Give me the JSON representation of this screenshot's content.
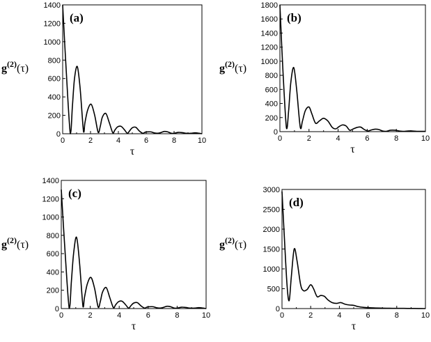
{
  "chart_data": [
    {
      "panel_label": "(a)",
      "type": "line",
      "ylabel": "g(2)(τ)",
      "ylabel_base": "g",
      "ylabel_sup": "(2)",
      "ylabel_arg": "(τ)",
      "xlabel": "τ",
      "xlim": [
        0,
        10
      ],
      "ylim": [
        0,
        1400
      ],
      "xticks": [
        0,
        2,
        4,
        6,
        8,
        10
      ],
      "yticks": [
        0,
        200,
        400,
        600,
        800,
        1000,
        1200,
        1400
      ],
      "grid": false,
      "series": [
        {
          "x": [
            0,
            0.25,
            0.55,
            0.7,
            0.85,
            1.05,
            1.25,
            1.5,
            1.6,
            1.8,
            2.05,
            2.3,
            2.55,
            2.7,
            2.85,
            3.1,
            3.35,
            3.6,
            3.75,
            3.95,
            4.2,
            4.45,
            4.65,
            4.8,
            5.0,
            5.25,
            5.5,
            5.75,
            5.9,
            6.1,
            6.35,
            6.55,
            6.8,
            7.0,
            7.3,
            7.55,
            7.8,
            8.0,
            8.3,
            8.6,
            8.9,
            9.2,
            9.5,
            9.8,
            10
          ],
          "y": [
            1400,
            700,
            0,
            300,
            600,
            730,
            500,
            20,
            120,
            260,
            320,
            200,
            15,
            80,
            180,
            220,
            120,
            10,
            40,
            75,
            80,
            40,
            5,
            30,
            65,
            70,
            30,
            5,
            15,
            20,
            20,
            10,
            5,
            10,
            25,
            20,
            5,
            5,
            15,
            12,
            5,
            5,
            10,
            5,
            0
          ]
        }
      ]
    },
    {
      "panel_label": "(b)",
      "type": "line",
      "ylabel": "g(2)(τ)",
      "ylabel_base": "g",
      "ylabel_sup": "(2)",
      "ylabel_arg": "(τ)",
      "xlabel": "τ",
      "xlim": [
        0,
        10
      ],
      "ylim": [
        0,
        1800
      ],
      "xticks": [
        0,
        2,
        4,
        6,
        8,
        10
      ],
      "yticks": [
        0,
        200,
        400,
        600,
        800,
        1000,
        1200,
        1400,
        1600,
        1800
      ],
      "grid": false,
      "series": [
        {
          "x": [
            0,
            0.2,
            0.45,
            0.6,
            0.75,
            0.95,
            1.15,
            1.4,
            1.55,
            1.75,
            2.0,
            2.2,
            2.45,
            2.7,
            3.0,
            3.3,
            3.6,
            3.85,
            4.05,
            4.3,
            4.55,
            4.8,
            5.05,
            5.3,
            5.55,
            5.8,
            6.05,
            6.3,
            6.55,
            6.8,
            7.05,
            7.3,
            7.6,
            7.9,
            8.2,
            8.5,
            8.8,
            9.1,
            9.4,
            9.7,
            10
          ],
          "y": [
            1800,
            900,
            50,
            300,
            700,
            910,
            600,
            60,
            150,
            300,
            350,
            250,
            120,
            150,
            190,
            150,
            60,
            40,
            70,
            95,
            80,
            20,
            40,
            60,
            65,
            30,
            10,
            25,
            35,
            30,
            10,
            5,
            20,
            20,
            10,
            5,
            10,
            10,
            5,
            5,
            5
          ]
        }
      ]
    },
    {
      "panel_label": "(c)",
      "type": "line",
      "ylabel": "g(2)(τ)",
      "ylabel_base": "g",
      "ylabel_sup": "(2)",
      "ylabel_arg": "(τ)",
      "xlabel": "τ",
      "xlim": [
        0,
        10
      ],
      "ylim": [
        0,
        1400
      ],
      "xticks": [
        0,
        2,
        4,
        6,
        8,
        10
      ],
      "yticks": [
        0,
        200,
        400,
        600,
        800,
        1000,
        1200,
        1400
      ],
      "grid": false,
      "series": [
        {
          "x": [
            0,
            0.25,
            0.55,
            0.7,
            0.85,
            1.05,
            1.25,
            1.5,
            1.6,
            1.8,
            2.05,
            2.3,
            2.55,
            2.7,
            2.85,
            3.1,
            3.35,
            3.6,
            3.75,
            3.95,
            4.2,
            4.45,
            4.65,
            4.8,
            5.0,
            5.25,
            5.5,
            5.75,
            5.9,
            6.1,
            6.35,
            6.55,
            6.8,
            7.0,
            7.3,
            7.55,
            7.8,
            8.0,
            8.3,
            8.6,
            8.9,
            9.2,
            9.5,
            9.8,
            10
          ],
          "y": [
            1300,
            650,
            0,
            300,
            600,
            780,
            520,
            20,
            120,
            270,
            340,
            220,
            15,
            80,
            180,
            230,
            120,
            10,
            40,
            75,
            80,
            40,
            5,
            30,
            60,
            65,
            30,
            5,
            15,
            20,
            20,
            10,
            5,
            10,
            25,
            20,
            5,
            5,
            15,
            12,
            5,
            5,
            10,
            5,
            0
          ]
        }
      ]
    },
    {
      "panel_label": "(d)",
      "type": "line",
      "ylabel": "g(2)(τ)",
      "ylabel_base": "g",
      "ylabel_sup": "(2)",
      "ylabel_arg": "(τ)",
      "xlabel": "τ",
      "xlim": [
        0,
        10
      ],
      "ylim": [
        0,
        3000
      ],
      "xticks": [
        0,
        2,
        4,
        6,
        8,
        10
      ],
      "yticks": [
        0,
        500,
        1000,
        1500,
        2000,
        2500,
        3000
      ],
      "grid": false,
      "series": [
        {
          "x": [
            0,
            0.15,
            0.35,
            0.5,
            0.65,
            0.85,
            1.05,
            1.3,
            1.5,
            1.75,
            2.0,
            2.2,
            2.45,
            2.7,
            2.95,
            3.2,
            3.5,
            3.8,
            4.1,
            4.4,
            4.7,
            5.0,
            5.3,
            5.7,
            6.1,
            6.5,
            7.0,
            7.5,
            8.0,
            8.5,
            9.0,
            9.5,
            10
          ],
          "y": [
            2950,
            1900,
            600,
            200,
            800,
            1500,
            1200,
            600,
            450,
            480,
            600,
            500,
            300,
            330,
            310,
            220,
            150,
            130,
            150,
            110,
            90,
            80,
            50,
            30,
            20,
            15,
            10,
            8,
            5,
            5,
            3,
            2,
            0
          ]
        }
      ]
    }
  ]
}
